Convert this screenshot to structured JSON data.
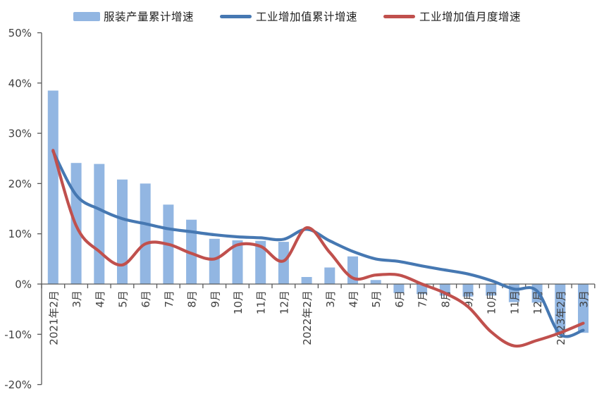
{
  "chart_data": {
    "type": "combo",
    "title": "",
    "categories": [
      "2021年2月",
      "3月",
      "4月",
      "5月",
      "6月",
      "7月",
      "8月",
      "9月",
      "10月",
      "11月",
      "12月",
      "2022年2月",
      "3月",
      "4月",
      "5月",
      "6月",
      "7月",
      "8月",
      "9月",
      "10月",
      "11月",
      "12月",
      "2023年2月",
      "3月"
    ],
    "series": [
      {
        "name": "服装产量累计增速",
        "type": "bar",
        "color": "#92B6E2",
        "values": [
          38.5,
          24.1,
          23.9,
          20.8,
          20.0,
          15.8,
          12.8,
          9.0,
          8.7,
          8.6,
          8.4,
          1.4,
          3.3,
          5.5,
          0.8,
          -1.8,
          -2.0,
          -2.3,
          -2.5,
          -2.3,
          -3.6,
          -3.7,
          -9.9,
          -9.7
        ]
      },
      {
        "name": "工业增加值累计增速",
        "type": "line",
        "color": "#4678B2",
        "values": [
          26.4,
          17.7,
          14.9,
          13.0,
          12.0,
          11.0,
          10.4,
          9.8,
          9.4,
          9.2,
          8.9,
          10.9,
          8.6,
          6.5,
          5.0,
          4.5,
          3.6,
          2.8,
          2.0,
          0.7,
          -1.0,
          -1.4,
          -10.0,
          -9.2
        ]
      },
      {
        "name": "工业增加值月度增速",
        "type": "line",
        "color": "#C0504D",
        "values": [
          26.6,
          11.6,
          6.5,
          3.8,
          8.0,
          7.9,
          6.1,
          5.0,
          7.8,
          7.5,
          4.6,
          11.2,
          6.3,
          1.2,
          1.8,
          1.8,
          0.0,
          -1.8,
          -4.5,
          -9.5,
          -12.3,
          -11.2,
          -9.7,
          -7.8
        ]
      }
    ],
    "xlabel": "",
    "ylabel": "",
    "y_ticks": [
      {
        "value": 50,
        "label": "50%"
      },
      {
        "value": 40,
        "label": "40%"
      },
      {
        "value": 30,
        "label": "30%"
      },
      {
        "value": 20,
        "label": "20%"
      },
      {
        "value": 10,
        "label": "10%"
      },
      {
        "value": 0,
        "label": "0%"
      },
      {
        "value": -10,
        "label": "-10%"
      },
      {
        "value": -20,
        "label": "-20%"
      }
    ],
    "ylim": [
      -20,
      50
    ],
    "grid": false,
    "legend_position": "top",
    "axis_color": "#595959"
  }
}
